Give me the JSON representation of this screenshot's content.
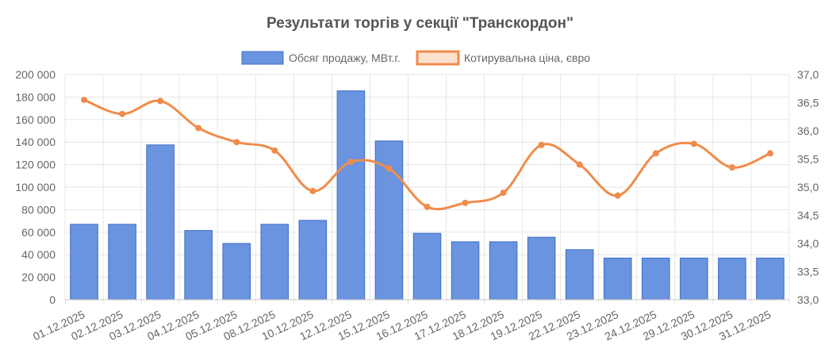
{
  "chart_data": {
    "type": "bar",
    "title": "Результати торгів у секції \"Транскордон\"",
    "categories": [
      "01.12.2025",
      "02.12.2025",
      "03.12.2025",
      "04.12.2025",
      "05.12.2025",
      "08.12.2025",
      "10.12.2025",
      "12.12.2025",
      "15.12.2025",
      "16.12.2025",
      "17.12.2025",
      "18.12.2025",
      "19.12.2025",
      "22.12.2025",
      "23.12.2025",
      "24.12.2025",
      "29.12.2025",
      "30.12.2025",
      "31.12.2025"
    ],
    "series": [
      {
        "name": "Обсяг продажу, МВт.г.",
        "type": "bar",
        "axis": "left",
        "color": "#6a93e0",
        "border_color": "#3f6fc9",
        "values": [
          67000,
          67000,
          137500,
          61500,
          50000,
          67000,
          70500,
          185500,
          141000,
          59000,
          51500,
          51500,
          55500,
          44500,
          37000,
          37000,
          37000,
          37000,
          37000
        ]
      },
      {
        "name": "Котирувальна ціна, євро",
        "type": "line",
        "axis": "right",
        "color": "#f08c4a",
        "fill_color": "#fde1cf",
        "values": [
          36.55,
          36.3,
          36.53,
          36.05,
          35.8,
          35.65,
          34.93,
          35.45,
          35.33,
          34.65,
          34.72,
          34.9,
          35.75,
          35.4,
          34.85,
          35.6,
          35.77,
          35.35,
          35.6
        ]
      }
    ],
    "y_left": {
      "min": 0,
      "max": 200000,
      "ticks": [
        0,
        20000,
        40000,
        60000,
        80000,
        100000,
        120000,
        140000,
        160000,
        180000,
        200000
      ],
      "tick_labels": [
        "0",
        "20 000",
        "40 000",
        "60 000",
        "80 000",
        "100 000",
        "120 000",
        "140 000",
        "160 000",
        "180 000",
        "200 000"
      ]
    },
    "y_right": {
      "min": 33.0,
      "max": 37.0,
      "ticks": [
        33.0,
        33.5,
        34.0,
        34.5,
        35.0,
        35.5,
        36.0,
        36.5,
        37.0
      ],
      "tick_labels": [
        "33,0",
        "33,5",
        "34,0",
        "34,5",
        "35,0",
        "35,5",
        "36,0",
        "36,5",
        "37,0"
      ]
    },
    "grid": true,
    "legend_position": "top-center"
  }
}
